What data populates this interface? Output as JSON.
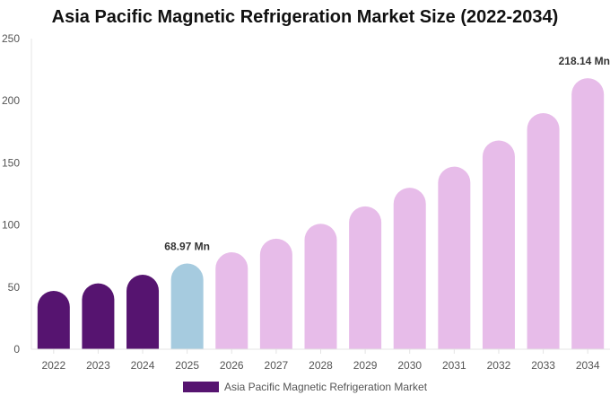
{
  "chart_data": {
    "type": "bar",
    "title": "Asia Pacific Magnetic Refrigeration Market Size (2022-2034)",
    "categories": [
      "2022",
      "2023",
      "2024",
      "2025",
      "2026",
      "2027",
      "2028",
      "2029",
      "2030",
      "2031",
      "2032",
      "2033",
      "2034"
    ],
    "series": [
      {
        "name": "Asia Pacific Magnetic Refrigeration Market",
        "values": [
          47,
          53,
          60,
          68.97,
          78,
          89,
          101,
          115,
          130,
          147,
          168,
          190,
          218.14
        ],
        "colors": [
          "#561470",
          "#561470",
          "#561470",
          "#a6cbdf",
          "#e7bce9",
          "#e7bce9",
          "#e7bce9",
          "#e7bce9",
          "#e7bce9",
          "#e7bce9",
          "#e7bce9",
          "#e7bce9",
          "#e7bce9"
        ]
      }
    ],
    "data_labels": [
      {
        "category": "2025",
        "text": "68.97 Mn"
      },
      {
        "category": "2034",
        "text": "218.14 Mn"
      }
    ],
    "y_ticks": [
      0,
      50,
      100,
      150,
      200,
      250
    ],
    "ylim": [
      0,
      250
    ],
    "xlabel": "",
    "ylabel": "",
    "grid": false,
    "legend_position": "bottom",
    "legend_color": "#561470"
  }
}
